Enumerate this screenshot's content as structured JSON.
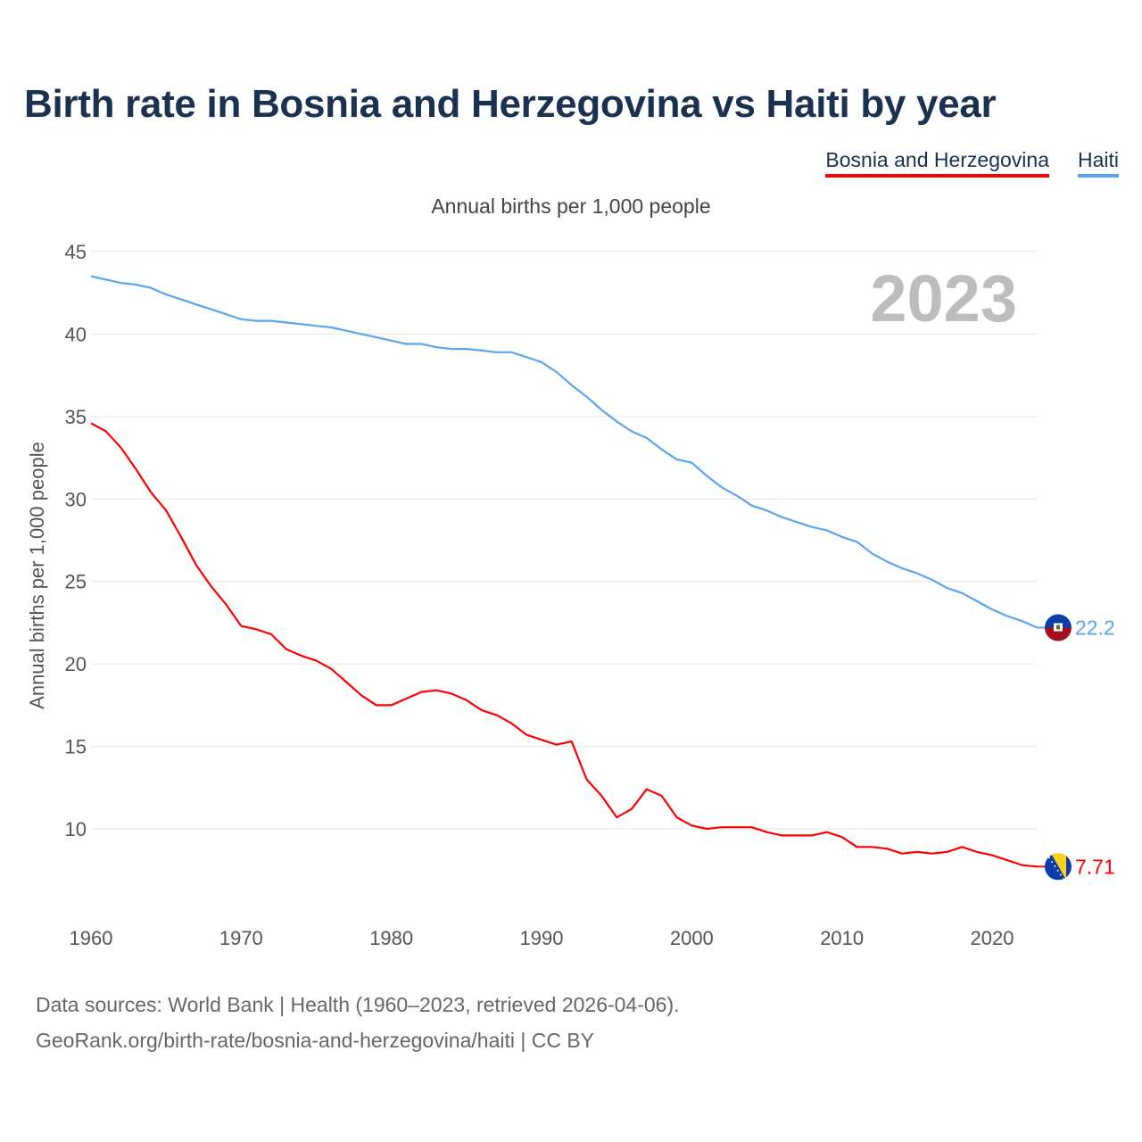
{
  "chart_data": {
    "type": "line",
    "title": "Birth rate in Bosnia and Herzegovina vs Haiti by year",
    "subtitle": "Annual births per 1,000 people",
    "ylabel": "Annual births per 1,000 people",
    "xlabel": "",
    "year_label": "2023",
    "xlim": [
      1960,
      2023
    ],
    "ylim": [
      5,
      45
    ],
    "yticks": [
      10,
      15,
      20,
      25,
      30,
      35,
      40,
      45
    ],
    "xticks": [
      1960,
      1970,
      1980,
      1990,
      2000,
      2010,
      2020
    ],
    "grid": true,
    "legend_placement": "top-right",
    "series": [
      {
        "name": "Bosnia and Herzegovina",
        "color": "#ff0000",
        "end_label": "7.71",
        "flag": "bosnia-flag",
        "values": [
          34.6,
          34.1,
          33.1,
          31.8,
          30.4,
          29.3,
          27.7,
          26.0,
          24.7,
          23.6,
          22.3,
          22.1,
          21.8,
          20.9,
          20.5,
          20.2,
          19.7,
          18.9,
          18.1,
          17.5,
          17.5,
          17.9,
          18.3,
          18.4,
          18.2,
          17.8,
          17.2,
          16.9,
          16.4,
          15.7,
          15.4,
          15.1,
          15.3,
          13.0,
          12.0,
          10.7,
          11.2,
          12.4,
          12.0,
          10.7,
          10.2,
          10.0,
          10.1,
          10.1,
          10.1,
          9.8,
          9.6,
          9.6,
          9.6,
          9.8,
          9.5,
          8.9,
          8.9,
          8.8,
          8.5,
          8.6,
          8.5,
          8.6,
          8.9,
          8.6,
          8.4,
          8.1,
          7.8,
          7.71
        ]
      },
      {
        "name": "Haiti",
        "color": "#5aa6ee",
        "end_label": "22.2",
        "flag": "haiti-flag",
        "values": [
          43.5,
          43.3,
          43.1,
          43.0,
          42.8,
          42.4,
          42.1,
          41.8,
          41.5,
          41.2,
          40.9,
          40.8,
          40.8,
          40.7,
          40.6,
          40.5,
          40.4,
          40.2,
          40.0,
          39.8,
          39.6,
          39.4,
          39.4,
          39.2,
          39.1,
          39.1,
          39.0,
          38.9,
          38.9,
          38.6,
          38.3,
          37.7,
          36.9,
          36.2,
          35.4,
          34.7,
          34.1,
          33.7,
          33.0,
          32.4,
          32.2,
          31.4,
          30.7,
          30.2,
          29.6,
          29.3,
          28.9,
          28.6,
          28.3,
          28.1,
          27.7,
          27.4,
          26.7,
          26.2,
          25.8,
          25.5,
          25.1,
          24.6,
          24.3,
          23.8,
          23.3,
          22.9,
          22.6,
          22.2
        ]
      }
    ]
  },
  "source": {
    "line1": "Data sources: World Bank | Health (1960–2023, retrieved 2026-04-06).",
    "line2": "GeoRank.org/birth-rate/bosnia-and-herzegovina/haiti | CC BY"
  }
}
